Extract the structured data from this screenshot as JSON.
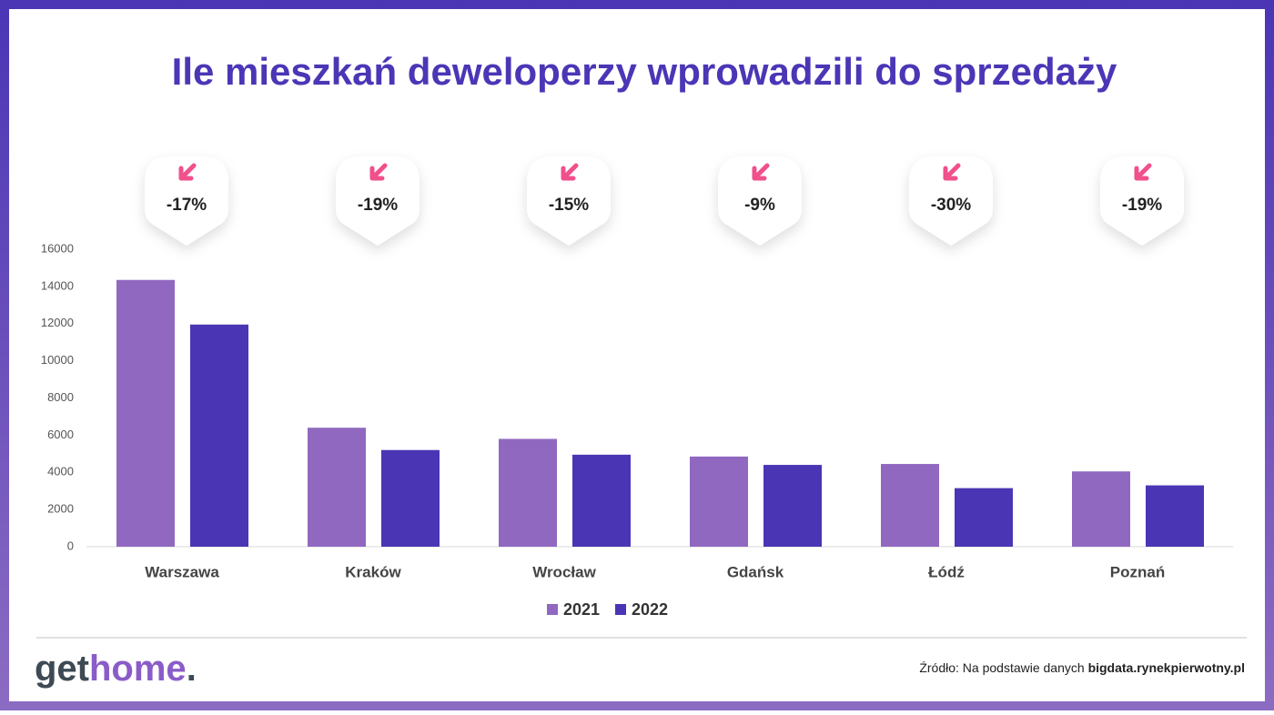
{
  "chart_data": {
    "type": "bar",
    "title": "Ile mieszkań deweloperzy wprowadzili do sprzedaży",
    "categories": [
      "Warszawa",
      "Kraków",
      "Wrocław",
      "Gdańsk",
      "Łódź",
      "Poznań"
    ],
    "series": [
      {
        "name": "2021",
        "color": "#9068c0",
        "values": [
          14350,
          6400,
          5800,
          4850,
          4450,
          4050
        ]
      },
      {
        "name": "2022",
        "color": "#4a35b5",
        "values": [
          11950,
          5200,
          4950,
          4400,
          3150,
          3300
        ]
      }
    ],
    "annotations": [
      "-17%",
      "-19%",
      "-15%",
      "-9%",
      "-30%",
      "-19%"
    ],
    "ylim": [
      0,
      16000
    ],
    "yticks": [
      0,
      2000,
      4000,
      6000,
      8000,
      10000,
      12000,
      14000,
      16000
    ],
    "legend": "bottom"
  },
  "footer": {
    "logo_start": "get",
    "logo_middle": "home",
    "logo_end": ".",
    "source_text": "Źródło: Na podstawie danych ",
    "source_link": "bigdata.rynekpierwotny.pl"
  }
}
